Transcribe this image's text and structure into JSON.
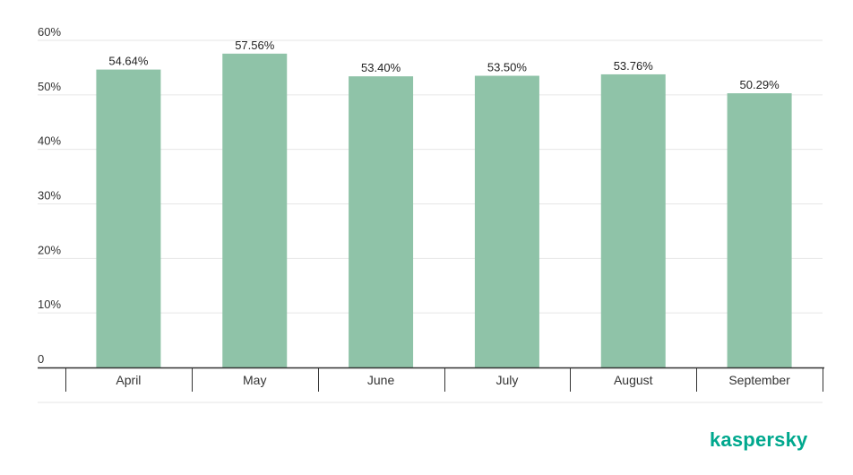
{
  "brand": {
    "logo_text": "kaspersky",
    "color": "#00a88e"
  },
  "colors": {
    "bar": "#8fc3a8",
    "grid": "#e6e6e6",
    "axis": "#333333"
  },
  "chart_data": {
    "type": "bar",
    "categories": [
      "April",
      "May",
      "June",
      "July",
      "August",
      "September"
    ],
    "values": [
      54.64,
      57.56,
      53.4,
      53.5,
      53.76,
      50.29
    ],
    "value_labels": [
      "54.64%",
      "57.56%",
      "53.40%",
      "53.50%",
      "53.76%",
      "50.29%"
    ],
    "ylim": [
      0,
      60
    ],
    "yticks": [
      0,
      10,
      20,
      30,
      40,
      50,
      60
    ],
    "ytick_labels": [
      "0",
      "10%",
      "20%",
      "30%",
      "40%",
      "50%",
      "60%"
    ],
    "grid": true,
    "title": "",
    "xlabel": "",
    "ylabel": ""
  }
}
